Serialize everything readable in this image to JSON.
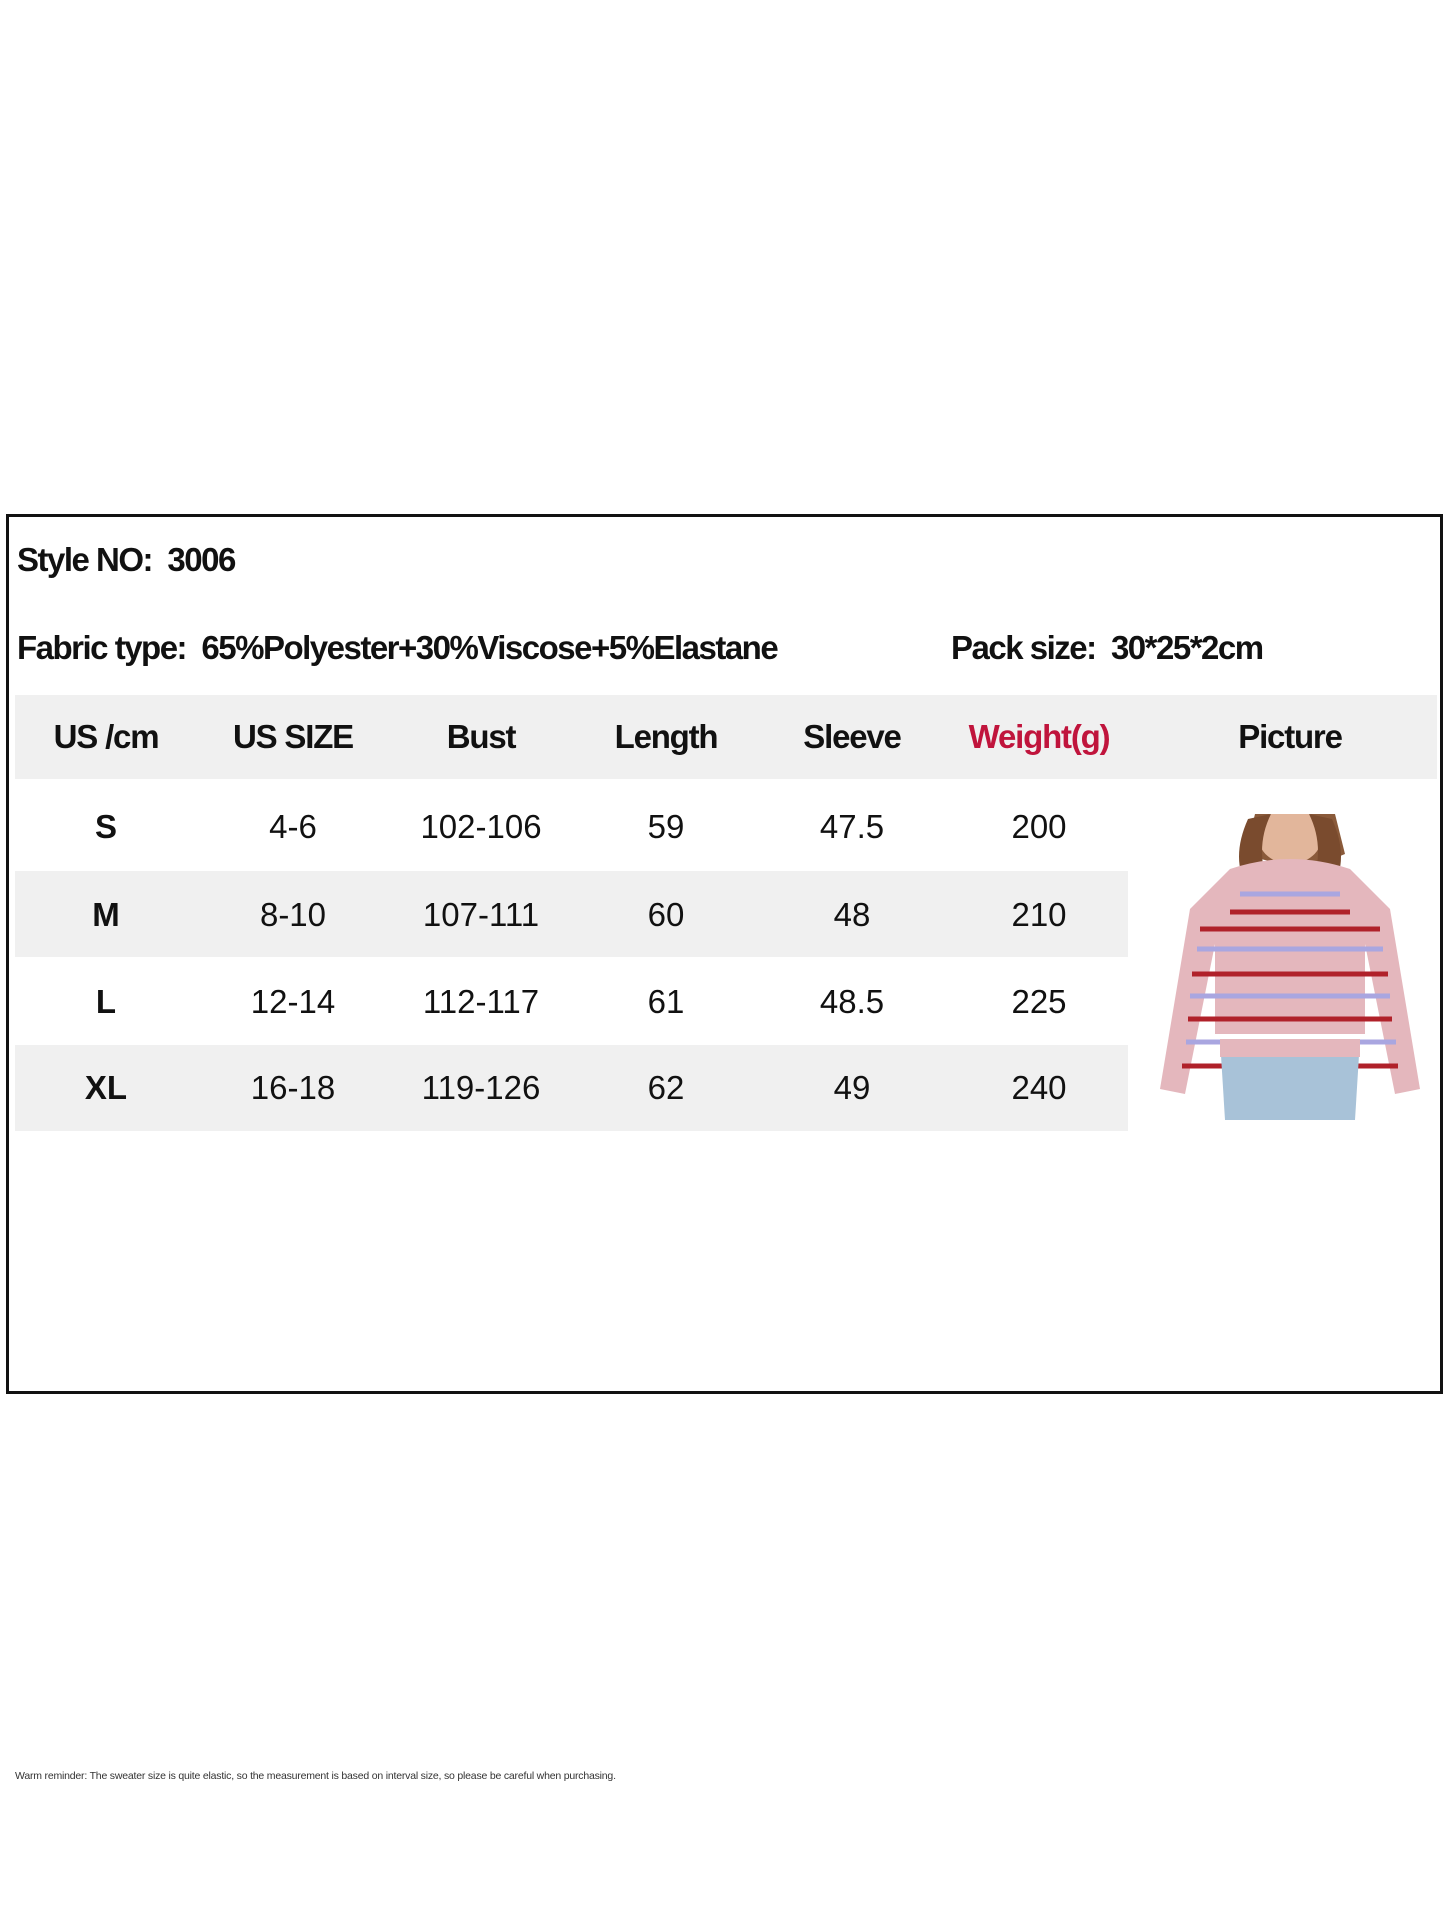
{
  "style": {
    "label": "Style NO:",
    "value": "3006"
  },
  "fabric": {
    "label": "Fabric type:",
    "value": "65%Polyester+30%Viscose+5%Elastane"
  },
  "pack": {
    "label": "Pack size:",
    "value": "30*25*2cm"
  },
  "table": {
    "headers": [
      "US /cm",
      "US SIZE",
      "Bust",
      "Length",
      "Sleeve",
      "Weight(g)",
      "Picture"
    ],
    "rows": [
      [
        "S",
        "4-6",
        "102-106",
        "59",
        "47.5",
        "200"
      ],
      [
        "M",
        "8-10",
        "107-111",
        "60",
        "48",
        "210"
      ],
      [
        "L",
        "12-14",
        "112-117",
        "61",
        "48.5",
        "225"
      ],
      [
        "XL",
        "16-18",
        "119-126",
        "62",
        "49",
        "240"
      ]
    ]
  },
  "note": "Warm reminder: The sweater size is quite elastic, so the measurement is based on interval size, so please be careful when purchasing.",
  "colors": {
    "weight_header": "#c0143c",
    "band": "#f0f0f0"
  }
}
